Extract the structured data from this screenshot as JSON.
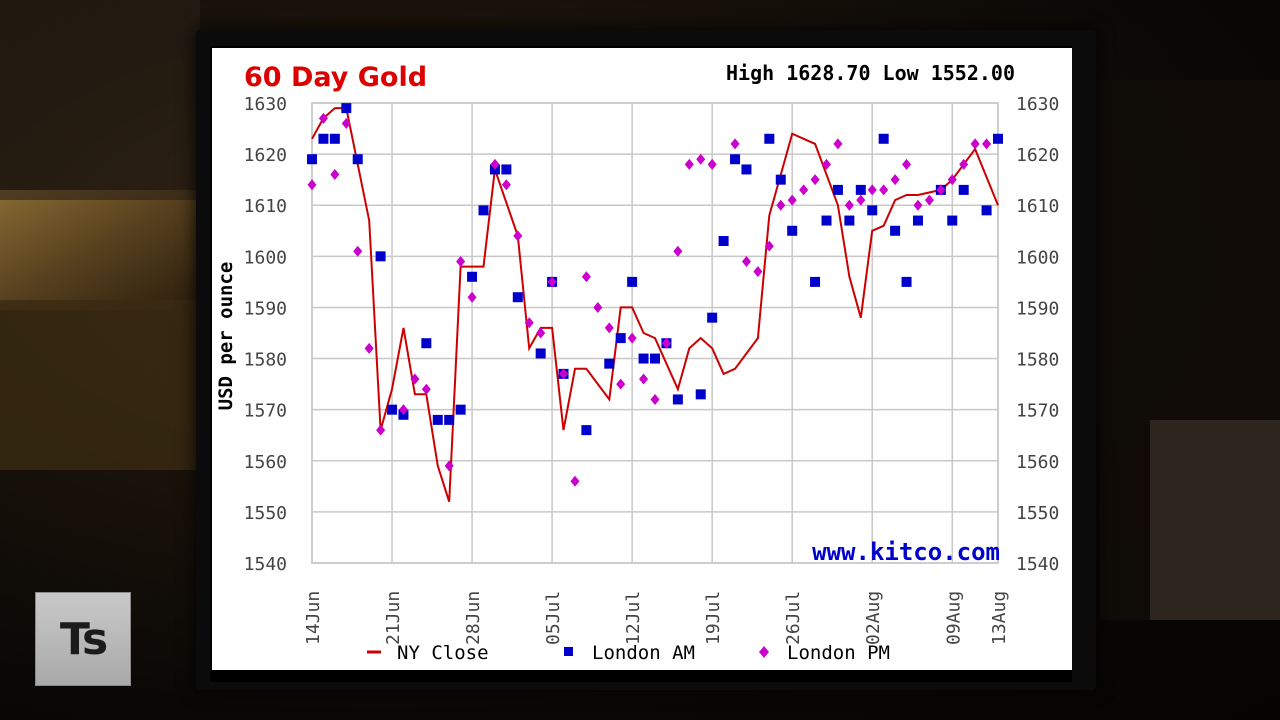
{
  "branding": {
    "logo_text": "Ts"
  },
  "chart": {
    "title": "60 Day Gold",
    "high_low_text": "High 1628.70 Low 1552.00",
    "watermark": "www.kitco.com",
    "ylabel": "USD per ounce"
  },
  "chart_data": {
    "type": "line",
    "title": "60 Day Gold",
    "ylabel": "USD per ounce",
    "xlabel": "",
    "ylim": [
      1540,
      1630
    ],
    "yticks": [
      1540,
      1550,
      1560,
      1570,
      1580,
      1590,
      1600,
      1610,
      1620,
      1630
    ],
    "x_tick_labels": [
      "14Jun",
      "21Jun",
      "28Jun",
      "05Jul",
      "12Jul",
      "19Jul",
      "26Jul",
      "02Aug",
      "09Aug",
      "13Aug"
    ],
    "x_tick_days": [
      0,
      7,
      14,
      21,
      28,
      35,
      42,
      49,
      56,
      60
    ],
    "grid": true,
    "legend_placement": "bottom",
    "series": [
      {
        "name": "NY Close",
        "style": "line",
        "color": "#cc0000",
        "x": [
          0,
          1,
          2,
          3,
          5,
          6,
          7,
          8,
          9,
          10,
          11,
          12,
          13,
          14,
          15,
          16,
          18,
          19,
          20,
          21,
          22,
          23,
          24,
          26,
          27,
          28,
          29,
          30,
          32,
          33,
          34,
          35,
          36,
          37,
          39,
          40,
          41,
          42,
          43,
          44,
          46,
          47,
          48,
          49,
          50,
          51,
          52,
          53,
          55,
          56,
          57,
          58,
          60
        ],
        "y": [
          1623,
          1627,
          1629,
          1629,
          1607,
          1566,
          1574,
          1586,
          1573,
          1573,
          1559,
          1552,
          1598,
          1598,
          1598,
          1617,
          1604,
          1582,
          1586,
          1586,
          1566,
          1578,
          1578,
          1572,
          1590,
          1590,
          1585,
          1584,
          1574,
          1582,
          1584,
          1582,
          1577,
          1578,
          1584,
          1608,
          1616,
          1624,
          1623,
          1622,
          1610,
          1596,
          1588,
          1605,
          1606,
          1611,
          1612,
          1612,
          1613,
          1615,
          1618,
          1621,
          1610
        ]
      },
      {
        "name": "London AM",
        "style": "square",
        "color": "#0000cc",
        "x": [
          0,
          1,
          2,
          3,
          4,
          6,
          7,
          8,
          10,
          11,
          12,
          13,
          14,
          15,
          16,
          17,
          18,
          20,
          21,
          22,
          24,
          26,
          27,
          28,
          29,
          30,
          31,
          32,
          34,
          35,
          36,
          37,
          38,
          40,
          41,
          42,
          44,
          45,
          46,
          47,
          48,
          49,
          50,
          51,
          52,
          53,
          55,
          56,
          57,
          59,
          60
        ],
        "y": [
          1619,
          1623,
          1623,
          1629,
          1619,
          1600,
          1570,
          1569,
          1583,
          1568,
          1568,
          1570,
          1596,
          1609,
          1617,
          1617,
          1592,
          1581,
          1595,
          1577,
          1566,
          1579,
          1584,
          1595,
          1580,
          1580,
          1583,
          1572,
          1573,
          1588,
          1603,
          1619,
          1617,
          1623,
          1615,
          1605,
          1595,
          1607,
          1613,
          1607,
          1613,
          1609,
          1623,
          1605,
          1595,
          1607,
          1613,
          1607,
          1613,
          1609,
          1623
        ]
      },
      {
        "name": "London PM",
        "style": "diamond",
        "color": "#cc00cc",
        "x": [
          0,
          1,
          2,
          3,
          4,
          5,
          6,
          8,
          9,
          10,
          12,
          13,
          14,
          16,
          17,
          18,
          19,
          20,
          21,
          22,
          23,
          24,
          25,
          26,
          27,
          28,
          29,
          30,
          31,
          32,
          33,
          34,
          35,
          37,
          38,
          39,
          40,
          41,
          42,
          43,
          44,
          45,
          46,
          47,
          48,
          49,
          50,
          51,
          52,
          53,
          54,
          55,
          56,
          57,
          58,
          59
        ],
        "y": [
          1614,
          1627,
          1616,
          1626,
          1601,
          1582,
          1566,
          1570,
          1576,
          1574,
          1559,
          1599,
          1592,
          1618,
          1614,
          1604,
          1587,
          1585,
          1595,
          1577,
          1556,
          1596,
          1590,
          1586,
          1575,
          1584,
          1576,
          1572,
          1583,
          1601,
          1618,
          1619,
          1618,
          1622,
          1599,
          1597,
          1602,
          1610,
          1611,
          1613,
          1615,
          1618,
          1622,
          1610,
          1611,
          1613,
          1613,
          1615,
          1618,
          1610,
          1611,
          1613,
          1615,
          1618,
          1622,
          1622
        ]
      }
    ]
  }
}
